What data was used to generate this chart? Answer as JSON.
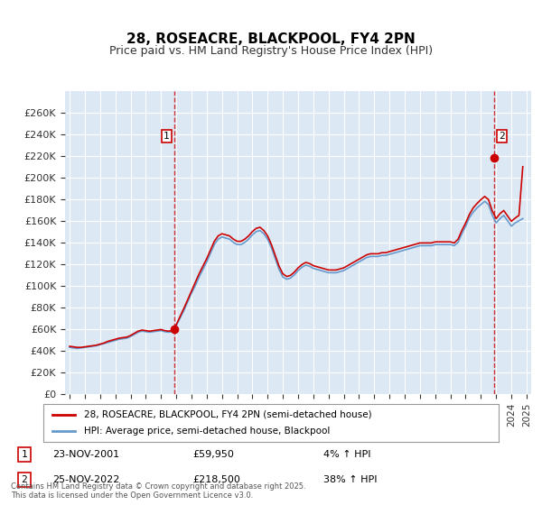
{
  "title": "28, ROSEACRE, BLACKPOOL, FY4 2PN",
  "subtitle": "Price paid vs. HM Land Registry's House Price Index (HPI)",
  "background_color": "#dce9f5",
  "plot_bg_color": "#dce9f5",
  "sale1_date": "23-NOV-2001",
  "sale1_price": 59950,
  "sale1_hpi": "4%",
  "sale2_date": "25-NOV-2022",
  "sale2_price": 218500,
  "sale2_hpi": "38%",
  "footer": "Contains HM Land Registry data © Crown copyright and database right 2025.\nThis data is licensed under the Open Government Licence v3.0.",
  "legend_line1": "28, ROSEACRE, BLACKPOOL, FY4 2PN (semi-detached house)",
  "legend_line2": "HPI: Average price, semi-detached house, Blackpool",
  "ylabel_color": "#333333",
  "sale_line_color": "#cc0000",
  "hpi_line_color": "#6699cc",
  "ylim": [
    0,
    280000
  ],
  "yticks": [
    0,
    20000,
    40000,
    60000,
    80000,
    100000,
    120000,
    140000,
    160000,
    180000,
    200000,
    220000,
    240000,
    260000
  ],
  "x_start_year": 1995,
  "x_end_year": 2025,
  "hpi_data": {
    "years": [
      1995.0,
      1995.25,
      1995.5,
      1995.75,
      1996.0,
      1996.25,
      1996.5,
      1996.75,
      1997.0,
      1997.25,
      1997.5,
      1997.75,
      1998.0,
      1998.25,
      1998.5,
      1998.75,
      1999.0,
      1999.25,
      1999.5,
      1999.75,
      2000.0,
      2000.25,
      2000.5,
      2000.75,
      2001.0,
      2001.25,
      2001.5,
      2001.75,
      2002.0,
      2002.25,
      2002.5,
      2002.75,
      2003.0,
      2003.25,
      2003.5,
      2003.75,
      2004.0,
      2004.25,
      2004.5,
      2004.75,
      2005.0,
      2005.25,
      2005.5,
      2005.75,
      2006.0,
      2006.25,
      2006.5,
      2006.75,
      2007.0,
      2007.25,
      2007.5,
      2007.75,
      2008.0,
      2008.25,
      2008.5,
      2008.75,
      2009.0,
      2009.25,
      2009.5,
      2009.75,
      2010.0,
      2010.25,
      2010.5,
      2010.75,
      2011.0,
      2011.25,
      2011.5,
      2011.75,
      2012.0,
      2012.25,
      2012.5,
      2012.75,
      2013.0,
      2013.25,
      2013.5,
      2013.75,
      2014.0,
      2014.25,
      2014.5,
      2014.75,
      2015.0,
      2015.25,
      2015.5,
      2015.75,
      2016.0,
      2016.25,
      2016.5,
      2016.75,
      2017.0,
      2017.25,
      2017.5,
      2017.75,
      2018.0,
      2018.25,
      2018.5,
      2018.75,
      2019.0,
      2019.25,
      2019.5,
      2019.75,
      2020.0,
      2020.25,
      2020.5,
      2020.75,
      2021.0,
      2021.25,
      2021.5,
      2021.75,
      2022.0,
      2022.25,
      2022.5,
      2022.75,
      2023.0,
      2023.25,
      2023.5,
      2023.75,
      2024.0,
      2024.25,
      2024.5,
      2024.75
    ],
    "values": [
      43000,
      42500,
      42000,
      42500,
      43000,
      43500,
      44000,
      44500,
      45500,
      46500,
      47500,
      48500,
      49500,
      50500,
      51000,
      51500,
      53000,
      55000,
      57000,
      58000,
      57500,
      57000,
      57500,
      58000,
      58500,
      57500,
      57000,
      57500,
      63000,
      70000,
      77000,
      85000,
      93000,
      100000,
      108000,
      115000,
      122000,
      130000,
      138000,
      143000,
      145000,
      144000,
      143000,
      140000,
      138000,
      138000,
      140000,
      143000,
      147000,
      150000,
      151000,
      148000,
      143000,
      135000,
      125000,
      115000,
      108000,
      106000,
      107000,
      110000,
      114000,
      117000,
      119000,
      118000,
      116000,
      115000,
      114000,
      113000,
      112000,
      112000,
      112000,
      113000,
      114000,
      116000,
      118000,
      120000,
      122000,
      124000,
      126000,
      127000,
      127000,
      127000,
      128000,
      128000,
      129000,
      130000,
      131000,
      132000,
      133000,
      134000,
      135000,
      136000,
      137000,
      137000,
      137000,
      137000,
      138000,
      138000,
      138000,
      138000,
      138000,
      137000,
      140000,
      148000,
      155000,
      163000,
      168000,
      172000,
      175000,
      178000,
      175000,
      165000,
      158000,
      162000,
      165000,
      160000,
      155000,
      158000,
      160000,
      162000
    ]
  },
  "price_data": {
    "years": [
      1995.0,
      1995.25,
      1995.5,
      1995.75,
      1996.0,
      1996.25,
      1996.5,
      1996.75,
      1997.0,
      1997.25,
      1997.5,
      1997.75,
      1998.0,
      1998.25,
      1998.5,
      1998.75,
      1999.0,
      1999.25,
      1999.5,
      1999.75,
      2000.0,
      2000.25,
      2000.5,
      2000.75,
      2001.0,
      2001.25,
      2001.5,
      2001.75,
      2002.0,
      2002.25,
      2002.5,
      2002.75,
      2003.0,
      2003.25,
      2003.5,
      2003.75,
      2004.0,
      2004.25,
      2004.5,
      2004.75,
      2005.0,
      2005.25,
      2005.5,
      2005.75,
      2006.0,
      2006.25,
      2006.5,
      2006.75,
      2007.0,
      2007.25,
      2007.5,
      2007.75,
      2008.0,
      2008.25,
      2008.5,
      2008.75,
      2009.0,
      2009.25,
      2009.5,
      2009.75,
      2010.0,
      2010.25,
      2010.5,
      2010.75,
      2011.0,
      2011.25,
      2011.5,
      2011.75,
      2012.0,
      2012.25,
      2012.5,
      2012.75,
      2013.0,
      2013.25,
      2013.5,
      2013.75,
      2014.0,
      2014.25,
      2014.5,
      2014.75,
      2015.0,
      2015.25,
      2015.5,
      2015.75,
      2016.0,
      2016.25,
      2016.5,
      2016.75,
      2017.0,
      2017.25,
      2017.5,
      2017.75,
      2018.0,
      2018.25,
      2018.5,
      2018.75,
      2019.0,
      2019.25,
      2019.5,
      2019.75,
      2020.0,
      2020.25,
      2020.5,
      2020.75,
      2021.0,
      2021.25,
      2021.5,
      2021.75,
      2022.0,
      2022.25,
      2022.5,
      2022.75,
      2023.0,
      2023.25,
      2023.5,
      2023.75,
      2024.0,
      2024.25,
      2024.5,
      2024.75
    ],
    "values": [
      44000,
      43500,
      43000,
      43000,
      43500,
      44000,
      44500,
      45000,
      46000,
      47000,
      48500,
      49500,
      50500,
      51500,
      52000,
      52500,
      54000,
      56000,
      58000,
      59000,
      58500,
      58000,
      58500,
      59000,
      59500,
      58500,
      58000,
      58500,
      64000,
      71500,
      79000,
      87000,
      95000,
      103000,
      111000,
      118000,
      125000,
      133000,
      141000,
      146000,
      148000,
      147000,
      146000,
      143000,
      141000,
      141000,
      143000,
      146000,
      150000,
      153000,
      154000,
      151000,
      146000,
      138000,
      128000,
      118000,
      111000,
      108500,
      109500,
      112500,
      116500,
      119500,
      121500,
      120500,
      118500,
      117500,
      116500,
      115500,
      114500,
      114500,
      114500,
      115500,
      116500,
      118500,
      120500,
      122500,
      124500,
      126500,
      128500,
      129500,
      129500,
      129500,
      130500,
      130500,
      131500,
      132500,
      133500,
      134500,
      135500,
      136500,
      137500,
      138500,
      139500,
      139500,
      139500,
      139500,
      140500,
      140500,
      140500,
      140500,
      140500,
      139500,
      143000,
      151000,
      158000,
      166000,
      172000,
      176000,
      179500,
      182500,
      179500,
      169000,
      162000,
      166500,
      169500,
      164500,
      159500,
      162500,
      165000,
      210000
    ]
  }
}
